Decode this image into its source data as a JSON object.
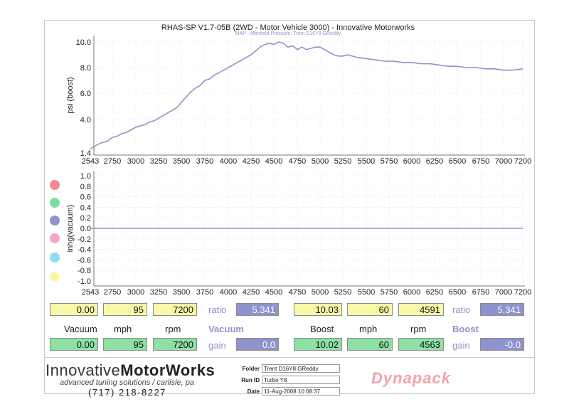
{
  "chart_data": [
    {
      "type": "line",
      "title": "RHAS-SP V1.7-05B   (2WD - Motor Vehicle 3000) - Innovative Motorworks",
      "subtitle": "MAP - Manifold Pressure: Trent D16Y8 GReddy",
      "xlabel": "",
      "ylabel": "psi (boost)",
      "xlim": [
        2543,
        7200
      ],
      "ylim": [
        1.4,
        10.0
      ],
      "x_ticks": [
        "2543",
        "2750",
        "3000",
        "3250",
        "3500",
        "3750",
        "4000",
        "4250",
        "4500",
        "4750",
        "5000",
        "5250",
        "5500",
        "5750",
        "6000",
        "6250",
        "6500",
        "6750",
        "7000",
        "7200"
      ],
      "y_ticks": [
        "1.4",
        "4.0",
        "6.0",
        "8.0",
        "10.0"
      ],
      "grid": true,
      "series": [
        {
          "color": "#8f92cc",
          "x": [
            2543,
            2600,
            2650,
            2700,
            2750,
            2800,
            2850,
            2900,
            2950,
            3000,
            3050,
            3100,
            3150,
            3200,
            3250,
            3300,
            3350,
            3400,
            3450,
            3500,
            3550,
            3600,
            3650,
            3700,
            3750,
            3800,
            3850,
            3900,
            3950,
            4000,
            4050,
            4100,
            4150,
            4200,
            4250,
            4300,
            4350,
            4400,
            4450,
            4500,
            4550,
            4600,
            4650,
            4700,
            4750,
            4800,
            4850,
            4900,
            4950,
            5000,
            5050,
            5100,
            5150,
            5200,
            5250,
            5300,
            5400,
            5500,
            5600,
            5700,
            5800,
            5900,
            6000,
            6100,
            6200,
            6300,
            6400,
            6500,
            6600,
            6700,
            6800,
            6900,
            7000,
            7100,
            7200
          ],
          "y": [
            1.7,
            2.0,
            2.2,
            2.3,
            2.6,
            2.7,
            2.9,
            3.0,
            3.2,
            3.4,
            3.5,
            3.6,
            3.8,
            3.9,
            4.1,
            4.3,
            4.5,
            4.7,
            4.9,
            5.3,
            5.7,
            6.1,
            6.4,
            6.6,
            7.0,
            7.1,
            7.4,
            7.6,
            7.8,
            8.0,
            8.2,
            8.4,
            8.6,
            8.8,
            9.0,
            9.3,
            9.6,
            9.8,
            9.9,
            9.8,
            10.0,
            9.9,
            9.6,
            9.7,
            9.4,
            9.6,
            9.4,
            9.5,
            9.6,
            9.6,
            9.4,
            9.2,
            9.0,
            8.9,
            8.9,
            9.0,
            8.8,
            8.7,
            8.6,
            8.5,
            8.5,
            8.4,
            8.4,
            8.3,
            8.3,
            8.2,
            8.1,
            8.1,
            8.0,
            8.0,
            7.9,
            7.9,
            7.8,
            7.8,
            7.9
          ]
        }
      ]
    },
    {
      "type": "line",
      "title": "",
      "xlabel": "",
      "ylabel": "inhg(vacuum)",
      "xlim": [
        2543,
        7200
      ],
      "ylim": [
        -1.0,
        1.0
      ],
      "x_ticks": [
        "2543",
        "2750",
        "3000",
        "3250",
        "3500",
        "3750",
        "4000",
        "4250",
        "4500",
        "4750",
        "5000",
        "5250",
        "5500",
        "5750",
        "6000",
        "6250",
        "6500",
        "6750",
        "7000",
        "7200"
      ],
      "y_ticks": [
        "-1.0",
        "-0.8",
        "-0.6",
        "-0.4",
        "-0.2",
        "0.0",
        "0.2",
        "0.4",
        "0.6",
        "0.8",
        "1.0"
      ],
      "grid": true,
      "series": [
        {
          "color": "#8f92cc",
          "x": [
            2543,
            7200
          ],
          "y": [
            0.0,
            0.0
          ]
        }
      ]
    }
  ],
  "legend_dots": [
    {
      "color": "#f28b8b"
    },
    {
      "color": "#7fdca0"
    },
    {
      "color": "#8f92cc"
    },
    {
      "color": "#f3a6c8"
    },
    {
      "color": "#8fdcf0"
    },
    {
      "color": "#faf6a8"
    }
  ],
  "readouts": {
    "left_top": {
      "vacuum": "0.00",
      "mph": "95",
      "rpm": "7200",
      "ratio_label": "ratio",
      "ratio": "5.341"
    },
    "left_labels": {
      "vacuum": "Vacuum",
      "mph": "mph",
      "rpm": "rpm",
      "mode": "Vacuum"
    },
    "left_bottom": {
      "vacuum": "0.00",
      "mph": "95",
      "rpm": "7200",
      "gain_label": "gain",
      "gain": "0.0"
    },
    "right_top": {
      "boost": "10.03",
      "mph": "60",
      "rpm": "4591",
      "ratio_label": "ratio",
      "ratio": "5.341"
    },
    "right_labels": {
      "boost": "Boost",
      "mph": "mph",
      "rpm": "rpm",
      "mode": "Boost"
    },
    "right_bottom": {
      "boost": "10.02",
      "mph": "60",
      "rpm": "4563",
      "gain_label": "gain",
      "gain": "-0.0"
    }
  },
  "footer": {
    "logo_regular": "Innovative",
    "logo_bold": "MotorWorks",
    "tagline": "advanced tuning solutions / carlisle, pa",
    "phone": "(717)  218-8227",
    "folder_label": "Folder",
    "folder_value": "Trent D16Y8 GReddy",
    "run_label": "Run ID",
    "run_value": "Turbo Y8",
    "date_label": "Date",
    "date_value": "11-Aug-2008  10:08:37",
    "brand": "Dynapack"
  }
}
